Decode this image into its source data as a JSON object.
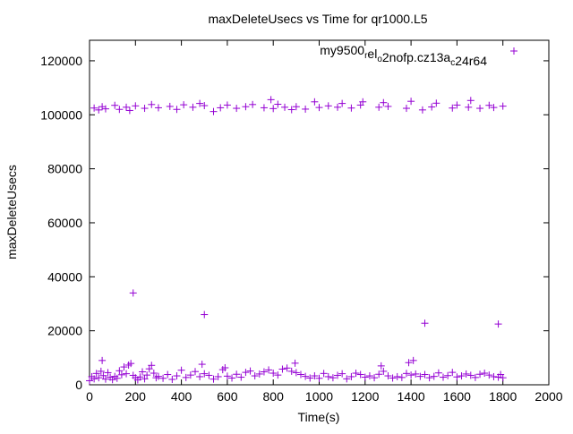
{
  "chart_data": {
    "type": "scatter",
    "title": "maxDeleteUsecs vs Time for qr1000.L5",
    "xlabel": "Time(s)",
    "ylabel": "maxDeleteUsecs",
    "xlim": [
      0,
      2000
    ],
    "ylim": [
      0,
      127600
    ],
    "xticks": [
      "0",
      "200",
      "400",
      "600",
      "800",
      "1000",
      "1200",
      "1400",
      "1600",
      "1800",
      "2000"
    ],
    "yticks": [
      "0",
      "20000",
      "40000",
      "60000",
      "80000",
      "100000",
      "120000"
    ],
    "grid": false,
    "legend_position": "top-right",
    "legend_parts": [
      {
        "text": "my9500",
        "sub": false
      },
      {
        "text": "r",
        "sub": true
      },
      {
        "text": "el",
        "sub": false
      },
      {
        "text": "o",
        "sub": true
      },
      {
        "text": "2nofp.cz13a",
        "sub": false
      },
      {
        "text": "c",
        "sub": true
      },
      {
        "text": "24r64",
        "sub": false
      }
    ],
    "legend_label": "my9500_rel_o2nofp.cz13a_c24r64",
    "color": "#9400d3",
    "series": [
      {
        "name": "my9500_rel_o2nofp.cz13a_c24r64",
        "marker": "+",
        "points": [
          [
            0,
            1500
          ],
          [
            10,
            3000
          ],
          [
            20,
            2200
          ],
          [
            30,
            4200
          ],
          [
            40,
            2600
          ],
          [
            50,
            5000
          ],
          [
            55,
            9000
          ],
          [
            60,
            3400
          ],
          [
            70,
            2100
          ],
          [
            80,
            4500
          ],
          [
            90,
            2800
          ],
          [
            100,
            1900
          ],
          [
            110,
            3100
          ],
          [
            120,
            2400
          ],
          [
            130,
            5200
          ],
          [
            140,
            3700
          ],
          [
            150,
            6600
          ],
          [
            160,
            4100
          ],
          [
            170,
            7300
          ],
          [
            180,
            7900
          ],
          [
            190,
            3500
          ],
          [
            200,
            2600
          ],
          [
            210,
            1800
          ],
          [
            220,
            2900
          ],
          [
            230,
            4800
          ],
          [
            240,
            2200
          ],
          [
            250,
            3600
          ],
          [
            260,
            5900
          ],
          [
            270,
            7200
          ],
          [
            280,
            4300
          ],
          [
            290,
            2600
          ],
          [
            300,
            3100
          ],
          [
            320,
            2400
          ],
          [
            340,
            3800
          ],
          [
            360,
            2000
          ],
          [
            380,
            3300
          ],
          [
            400,
            5400
          ],
          [
            420,
            2700
          ],
          [
            440,
            3600
          ],
          [
            460,
            4900
          ],
          [
            480,
            3000
          ],
          [
            490,
            7600
          ],
          [
            500,
            4100
          ],
          [
            520,
            3500
          ],
          [
            540,
            2100
          ],
          [
            560,
            3000
          ],
          [
            580,
            5600
          ],
          [
            590,
            6300
          ],
          [
            600,
            3200
          ],
          [
            620,
            2500
          ],
          [
            640,
            3900
          ],
          [
            660,
            2800
          ],
          [
            680,
            4600
          ],
          [
            700,
            5100
          ],
          [
            720,
            3300
          ],
          [
            740,
            4000
          ],
          [
            760,
            4800
          ],
          [
            780,
            5500
          ],
          [
            800,
            4300
          ],
          [
            820,
            3600
          ],
          [
            840,
            5800
          ],
          [
            860,
            6200
          ],
          [
            880,
            5000
          ],
          [
            895,
            8000
          ],
          [
            900,
            4500
          ],
          [
            920,
            3800
          ],
          [
            940,
            3100
          ],
          [
            960,
            2500
          ],
          [
            980,
            3300
          ],
          [
            1000,
            2400
          ],
          [
            1020,
            4200
          ],
          [
            1040,
            3000
          ],
          [
            1060,
            2600
          ],
          [
            1080,
            3500
          ],
          [
            1100,
            4100
          ],
          [
            1120,
            2200
          ],
          [
            1140,
            3000
          ],
          [
            1160,
            4300
          ],
          [
            1180,
            3800
          ],
          [
            1200,
            2800
          ],
          [
            1220,
            3300
          ],
          [
            1240,
            2600
          ],
          [
            1260,
            3900
          ],
          [
            1270,
            7000
          ],
          [
            1280,
            5000
          ],
          [
            1300,
            3300
          ],
          [
            1320,
            2500
          ],
          [
            1340,
            3000
          ],
          [
            1360,
            2700
          ],
          [
            1380,
            4200
          ],
          [
            1390,
            8200
          ],
          [
            1400,
            3600
          ],
          [
            1410,
            9000
          ],
          [
            1420,
            4000
          ],
          [
            1440,
            3100
          ],
          [
            1460,
            3800
          ],
          [
            1480,
            2600
          ],
          [
            1500,
            3100
          ],
          [
            1520,
            4400
          ],
          [
            1540,
            2800
          ],
          [
            1560,
            3400
          ],
          [
            1580,
            4600
          ],
          [
            1600,
            2900
          ],
          [
            1620,
            3300
          ],
          [
            1640,
            4000
          ],
          [
            1660,
            3500
          ],
          [
            1680,
            2700
          ],
          [
            1700,
            3900
          ],
          [
            1720,
            4300
          ],
          [
            1740,
            3600
          ],
          [
            1760,
            3000
          ],
          [
            1780,
            2800
          ],
          [
            1790,
            3800
          ],
          [
            1800,
            2600
          ],
          [
            190,
            34000
          ],
          [
            500,
            26000
          ],
          [
            1460,
            22800
          ],
          [
            1780,
            22500
          ],
          [
            20,
            102500
          ],
          [
            40,
            101800
          ],
          [
            55,
            103000
          ],
          [
            70,
            102200
          ],
          [
            110,
            103500
          ],
          [
            130,
            102000
          ],
          [
            160,
            102800
          ],
          [
            175,
            101600
          ],
          [
            200,
            103300
          ],
          [
            240,
            102400
          ],
          [
            270,
            103800
          ],
          [
            300,
            102600
          ],
          [
            350,
            103100
          ],
          [
            380,
            102000
          ],
          [
            410,
            103700
          ],
          [
            450,
            102800
          ],
          [
            480,
            104200
          ],
          [
            500,
            103400
          ],
          [
            540,
            101200
          ],
          [
            570,
            102600
          ],
          [
            600,
            103600
          ],
          [
            640,
            102400
          ],
          [
            680,
            103000
          ],
          [
            710,
            103800
          ],
          [
            760,
            102600
          ],
          [
            790,
            105600
          ],
          [
            800,
            102300
          ],
          [
            820,
            103900
          ],
          [
            850,
            102800
          ],
          [
            880,
            101900
          ],
          [
            900,
            103000
          ],
          [
            940,
            102100
          ],
          [
            980,
            104800
          ],
          [
            1000,
            102700
          ],
          [
            1040,
            103300
          ],
          [
            1080,
            102800
          ],
          [
            1100,
            104200
          ],
          [
            1140,
            102500
          ],
          [
            1180,
            103600
          ],
          [
            1190,
            104800
          ],
          [
            1260,
            102800
          ],
          [
            1280,
            104500
          ],
          [
            1300,
            103100
          ],
          [
            1380,
            102400
          ],
          [
            1400,
            105000
          ],
          [
            1450,
            101800
          ],
          [
            1490,
            102900
          ],
          [
            1510,
            104300
          ],
          [
            1580,
            102500
          ],
          [
            1600,
            103600
          ],
          [
            1650,
            102800
          ],
          [
            1660,
            105300
          ],
          [
            1700,
            102400
          ],
          [
            1740,
            103500
          ],
          [
            1760,
            102700
          ],
          [
            1800,
            103200
          ]
        ]
      }
    ]
  }
}
